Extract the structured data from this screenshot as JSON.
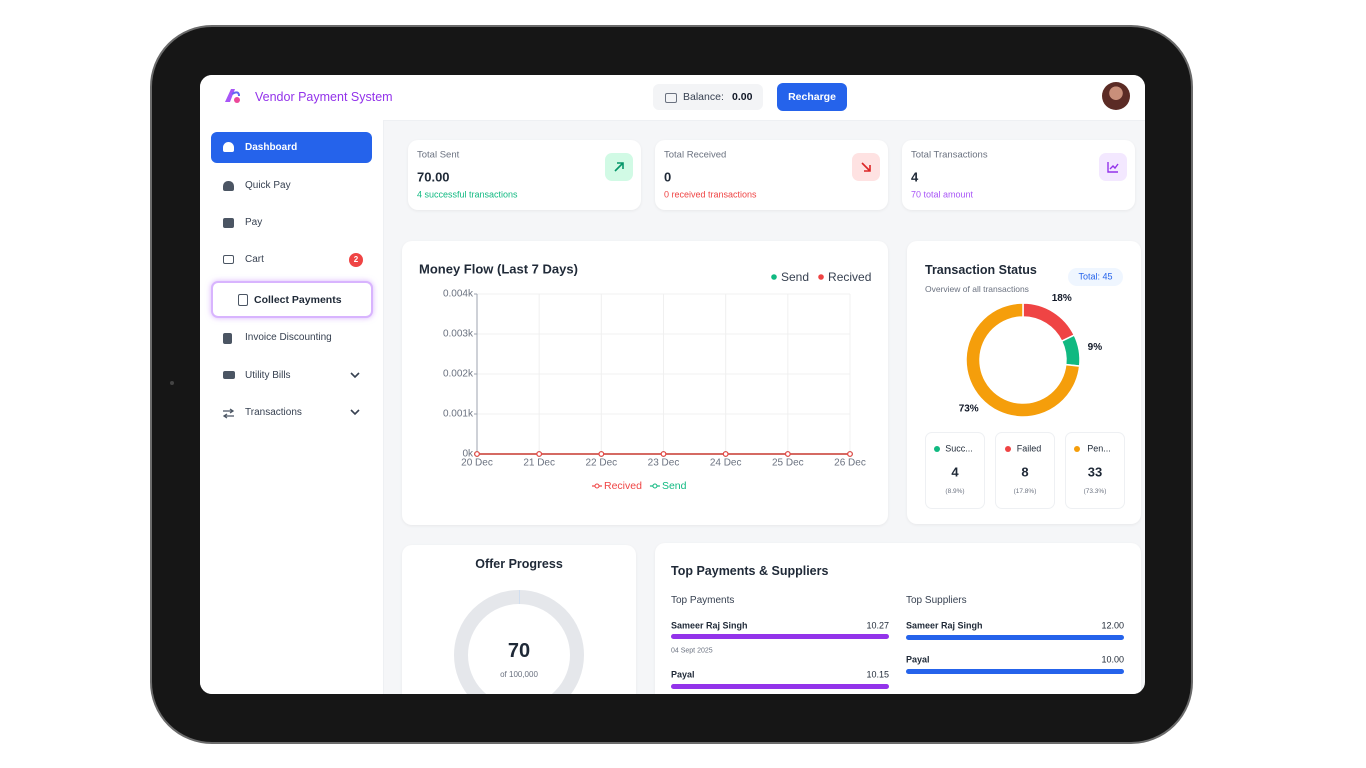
{
  "header": {
    "app_name": "Vendor Payment System",
    "balance_label": "Balance:",
    "balance": "0.00",
    "recharge": "Recharge"
  },
  "sidebar": {
    "items": [
      "Dashboard",
      "Quick Pay",
      "Pay",
      "Cart",
      "Collect Payments",
      "Invoice Discounting",
      "Utility Bills",
      "Transactions"
    ],
    "cart_badge": "2"
  },
  "stats": [
    {
      "label": "Total Sent",
      "value": "70.00",
      "note": "4 successful transactions"
    },
    {
      "label": "Total Received",
      "value": "0",
      "note": "0 received transactions"
    },
    {
      "label": "Total Transactions",
      "value": "4",
      "note": "70 total amount"
    }
  ],
  "money_flow": {
    "type": "line",
    "title": "Money Flow (Last 7 Days)",
    "categories": [
      "20 Dec",
      "21 Dec",
      "22 Dec",
      "23 Dec",
      "24 Dec",
      "25 Dec",
      "26 Dec"
    ],
    "series": [
      {
        "name": "Send",
        "color": "#10b981",
        "values": [
          0,
          0,
          0,
          0,
          0,
          0,
          0
        ]
      },
      {
        "name": "Recived",
        "color": "#ef4444",
        "values": [
          0,
          0,
          0,
          0,
          0,
          0,
          0
        ]
      }
    ],
    "ylim": [
      0,
      4
    ],
    "yticks": [
      {
        "value": 0,
        "label": "0k"
      },
      {
        "value": 1,
        "label": "0.001k"
      },
      {
        "value": 2,
        "label": "0.002k"
      },
      {
        "value": 3,
        "label": "0.003k"
      },
      {
        "value": 4,
        "label": "0.004k"
      }
    ],
    "grid": true
  },
  "transaction_status": {
    "title": "Transaction Status",
    "subtitle": "Overview of all transactions",
    "total": "Total: 45",
    "chart": {
      "type": "pie",
      "values": [
        17.8,
        8.9,
        73.3
      ],
      "value_labels": [
        "18%",
        "9%",
        "73%"
      ],
      "colors": [
        "#ef4444",
        "#10b981",
        "#f59e0b"
      ]
    },
    "cards": [
      {
        "name": "Succ...",
        "count": 4,
        "percent": "(8.9%)"
      },
      {
        "name": "Failed",
        "count": 8,
        "percent": "(17.8%)"
      },
      {
        "name": "Pen...",
        "count": 33,
        "percent": "(73.3%)"
      }
    ]
  },
  "offer_progress": {
    "title": "Offer Progress",
    "value": 70,
    "max": 100000,
    "max_label": "of 100,000"
  },
  "top_payments": {
    "title": "Top Payments & Suppliers",
    "payments": {
      "title": "Top Payments",
      "items": [
        {
          "name": "Sameer Raj Singh",
          "amount": "10.27",
          "date": "04 Sept 2025"
        },
        {
          "name": "Payal",
          "amount": "10.15"
        }
      ]
    },
    "suppliers": {
      "title": "Top Suppliers",
      "items": [
        {
          "name": "Sameer Raj Singh",
          "amount": "12.00"
        },
        {
          "name": "Payal",
          "amount": "10.00"
        }
      ]
    }
  }
}
